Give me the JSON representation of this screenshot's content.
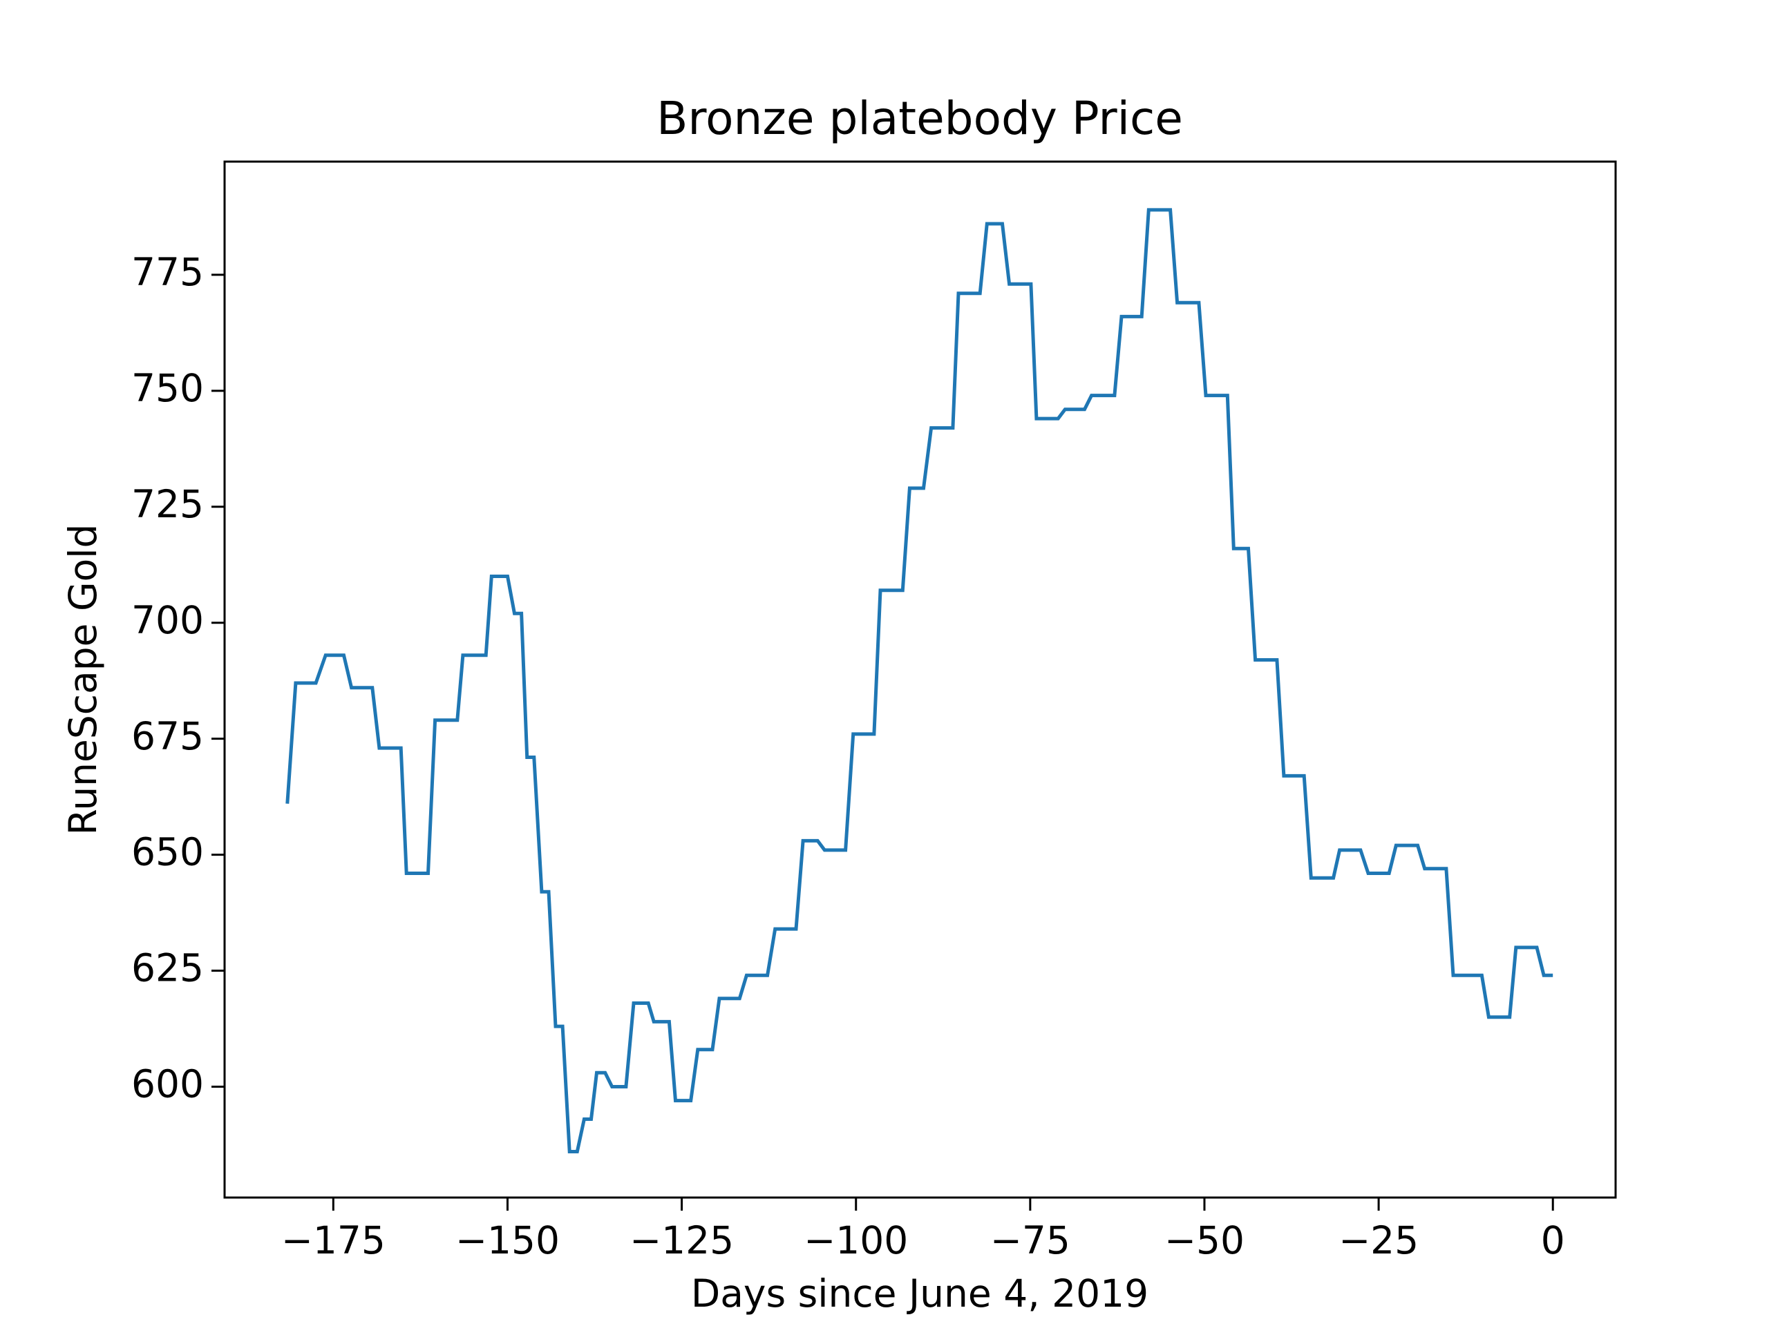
{
  "chart_data": {
    "type": "line",
    "title": "Bronze platebody Price",
    "xlabel": "Days since June 4, 2019",
    "ylabel": "RuneScape Gold",
    "xlim": [
      -190.6,
      9.0
    ],
    "ylim": [
      576.1,
      799.4
    ],
    "xticks": [
      -175,
      -150,
      -125,
      -100,
      -75,
      -50,
      -25,
      0
    ],
    "yticks": [
      600,
      625,
      650,
      675,
      700,
      725,
      750,
      775
    ],
    "grid": false,
    "series": [
      {
        "color": "#1f77b4",
        "x": [
          -181.6,
          -180.4,
          -177.5,
          -176.1,
          -173.5,
          -172.4,
          -169.4,
          -168.4,
          -165.3,
          -164.5,
          -161.4,
          -160.4,
          -157.2,
          -156.4,
          -153.1,
          -152.3,
          -150,
          -149,
          -148,
          -147.2,
          -146.2,
          -145.1,
          -144.1,
          -143.1,
          -142.1,
          -141.1,
          -140,
          -139,
          -138,
          -137.2,
          -136,
          -135,
          -133,
          -131.9,
          -129.8,
          -129,
          -126.8,
          -125.9,
          -123.7,
          -122.7,
          -120.6,
          -119.6,
          -116.7,
          -115.7,
          -112.7,
          -111.6,
          -108.6,
          -107.6,
          -105.5,
          -104.5,
          -101.5,
          -100.4,
          -97.4,
          -96.5,
          -93.3,
          -92.3,
          -90.3,
          -89.2,
          -86.1,
          -85.3,
          -82.2,
          -81.2,
          -79,
          -78,
          -74.9,
          -74.1,
          -71,
          -70,
          -67.2,
          -66.2,
          -62.9,
          -61.9,
          -59,
          -58,
          -54.9,
          -53.9,
          -50.8,
          -49.8,
          -46.7,
          -45.8,
          -43.7,
          -42.7,
          -39.6,
          -38.6,
          -35.7,
          -34.7,
          -31.5,
          -30.6,
          -27.6,
          -26.5,
          -23.5,
          -22.5,
          -19.4,
          -18.4,
          -15.3,
          -14.3,
          -10.2,
          -9.2,
          -6.2,
          -5.3,
          -2.3,
          -1.3,
          0
        ],
        "values": [
          661,
          687,
          687,
          693,
          693,
          686,
          686,
          673,
          673,
          646,
          646,
          679,
          679,
          693,
          693,
          710,
          710,
          702,
          702,
          671,
          671,
          642,
          642,
          613,
          613,
          586,
          586,
          593,
          593,
          603,
          603,
          600,
          600,
          618,
          618,
          614,
          614,
          597,
          597,
          608,
          608,
          619,
          619,
          624,
          624,
          634,
          634,
          653,
          653,
          651,
          651,
          676,
          676,
          707,
          707,
          729,
          729,
          742,
          742,
          771,
          771,
          786,
          786,
          773,
          773,
          744,
          744,
          746,
          746,
          749,
          749,
          766,
          766,
          789,
          789,
          769,
          769,
          749,
          749,
          716,
          716,
          692,
          692,
          667,
          667,
          645,
          645,
          651,
          651,
          646,
          646,
          652,
          652,
          647,
          647,
          624,
          624,
          615,
          615,
          630,
          630,
          624,
          624
        ]
      }
    ]
  }
}
